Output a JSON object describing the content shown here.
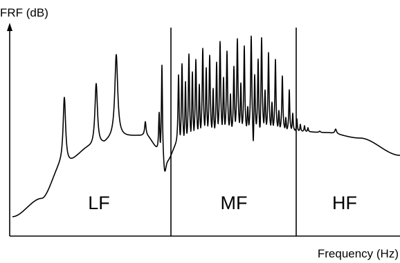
{
  "axes": {
    "y_label": "FRF (dB)",
    "x_label": "Frequency (Hz)"
  },
  "bands": [
    {
      "id": "lf",
      "label": "LF"
    },
    {
      "id": "mf",
      "label": "MF"
    },
    {
      "id": "hf",
      "label": "HF"
    }
  ],
  "colors": {
    "ink": "#000000",
    "background": "#ffffff"
  }
}
